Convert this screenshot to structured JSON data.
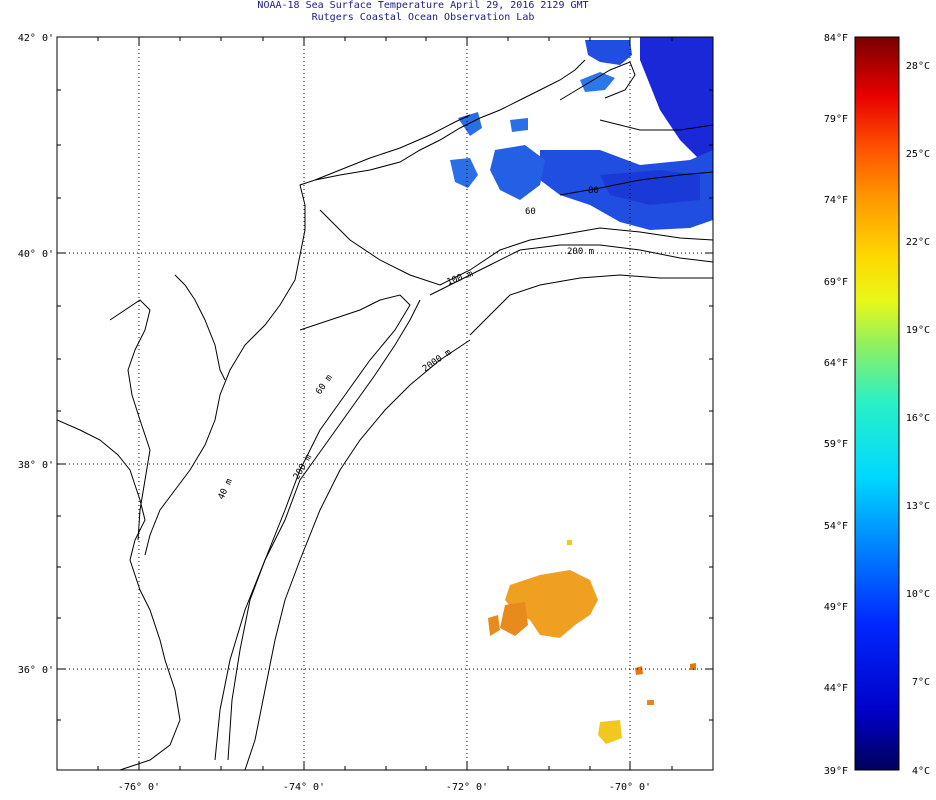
{
  "header": {
    "title_line1": "NOAA-18 Sea Surface Temperature April 29, 2016 2129 GMT",
    "title_line2": "Rutgers Coastal Ocean Observation Lab"
  },
  "map": {
    "lat_labels": [
      "42° 0'",
      "40° 0'",
      "38° 0'",
      "36° 0'"
    ],
    "lon_labels": [
      "-76° 0'",
      "-74° 0'",
      "-72° 0'",
      "-70° 0'"
    ],
    "grid_style": "dotted",
    "isobath_labels": [
      "200 m",
      "100 m",
      "2000 m",
      "60 m",
      "40 m",
      "200 m",
      "80",
      "60"
    ]
  },
  "colorbar": {
    "fahrenheit_labels": [
      "84°F",
      "79°F",
      "74°F",
      "69°F",
      "64°F",
      "59°F",
      "54°F",
      "49°F",
      "44°F",
      "39°F"
    ],
    "celsius_labels": [
      "28°C",
      "25°C",
      "22°C",
      "19°C",
      "16°C",
      "13°C",
      "10°C",
      "7°C",
      "4°C"
    ]
  },
  "colors": {
    "cold": "#0a1eb4",
    "mid_blue": "#1f5ae6",
    "warm": "#f0a020",
    "hot": "#e07818",
    "frame": "#000000",
    "title": "#1a1a8c"
  }
}
